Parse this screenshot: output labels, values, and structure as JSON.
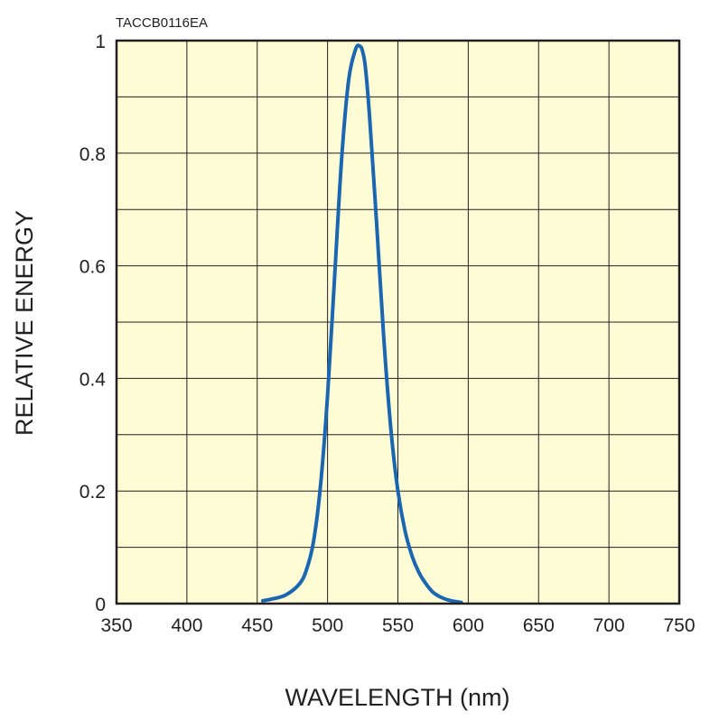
{
  "chart_data": {
    "type": "line",
    "title": "",
    "figure_code": "TACCB0116EA",
    "xlabel": "WAVELENGTH (nm)",
    "ylabel": "RELATIVE ENERGY",
    "xlim": [
      350,
      750
    ],
    "ylim": [
      0,
      1
    ],
    "x_ticks": [
      350,
      400,
      450,
      500,
      550,
      600,
      650,
      700,
      750
    ],
    "y_ticks": [
      0,
      0.2,
      0.4,
      0.6,
      0.8,
      1
    ],
    "y_tick_labels": [
      "0",
      "0.2",
      "0.4",
      "0.6",
      "0.8",
      "1"
    ],
    "grid": true,
    "plot_background": "#fefcd5",
    "series": [
      {
        "color": "#1a66b0",
        "x": [
          454,
          460,
          470,
          480,
          485,
          490,
          495,
          500,
          505,
          510,
          515,
          520,
          523,
          525,
          527,
          530,
          535,
          540,
          545,
          550,
          555,
          560,
          565,
          570,
          575,
          580,
          585,
          590,
          595
        ],
        "y": [
          0.005,
          0.008,
          0.015,
          0.035,
          0.06,
          0.11,
          0.21,
          0.37,
          0.58,
          0.79,
          0.93,
          0.985,
          0.99,
          0.98,
          0.95,
          0.86,
          0.67,
          0.47,
          0.31,
          0.2,
          0.13,
          0.085,
          0.055,
          0.035,
          0.02,
          0.012,
          0.007,
          0.004,
          0.002
        ]
      }
    ]
  }
}
